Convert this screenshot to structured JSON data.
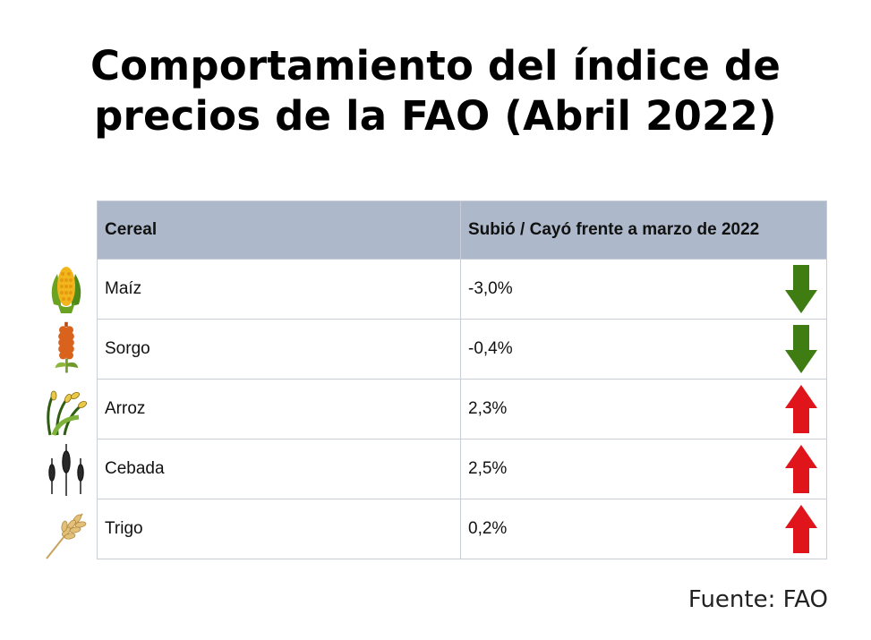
{
  "title": {
    "line1": "Comportamiento del índice de",
    "line2": "precios de la FAO (Abril 2022)"
  },
  "table": {
    "headers": [
      "Cereal",
      "Subió / Cayó frente a marzo de 2022"
    ],
    "rows": [
      {
        "cereal": "Maíz",
        "change": "-3,0%",
        "direction": "down",
        "icon": "corn-icon",
        "arrow_color": "#3f7d12"
      },
      {
        "cereal": "Sorgo",
        "change": "-0,4%",
        "direction": "down",
        "icon": "sorghum-icon",
        "arrow_color": "#3f7d12"
      },
      {
        "cereal": "Arroz",
        "change": "2,3%",
        "direction": "up",
        "icon": "rice-icon",
        "arrow_color": "#e0141b"
      },
      {
        "cereal": "Cebada",
        "change": "2,5%",
        "direction": "up",
        "icon": "barley-icon",
        "arrow_color": "#e0141b"
      },
      {
        "cereal": "Trigo",
        "change": "0,2%",
        "direction": "up",
        "icon": "wheat-icon",
        "arrow_color": "#e0141b"
      }
    ]
  },
  "source": "Fuente: FAO",
  "colors": {
    "header_bg": "#adb9ca",
    "down": "#3f7d12",
    "up": "#e0141b"
  }
}
